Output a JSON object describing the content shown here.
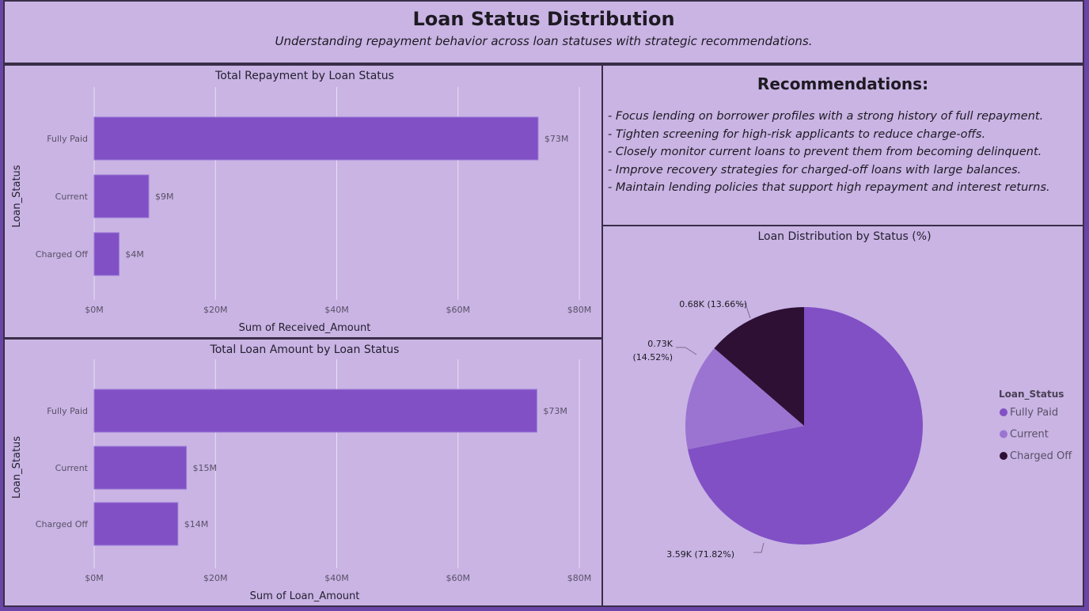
{
  "header": {
    "title": "Loan Status Distribution",
    "subtitle": "Understanding repayment behavior across loan statuses with strategic recommendations."
  },
  "recommendations": {
    "title": "Recommendations:",
    "items": [
      "- Focus lending on borrower profiles with a strong history of full repayment.",
      "- Tighten screening for high-risk applicants to reduce charge-offs.",
      "- Closely monitor current loans to prevent them from becoming delinquent.",
      "- Improve recovery strategies for charged-off loans with large balances.",
      "- Maintain lending policies that support high repayment and interest returns."
    ]
  },
  "colors": {
    "fully_paid": "#8150c5",
    "current": "#9b74d1",
    "charged_off": "#2e1034",
    "bar": "#8150c5"
  },
  "chart_data": [
    {
      "type": "bar",
      "orientation": "horizontal",
      "title": "Total Repayment by Loan Status",
      "xlabel": "Sum of Received_Amount",
      "ylabel": "Loan_Status",
      "categories": [
        "Fully Paid",
        "Current",
        "Charged Off"
      ],
      "values": [
        73.2,
        9.0,
        4.1
      ],
      "unit": "$M",
      "data_labels": [
        "$73M",
        "$9M",
        "$4M"
      ],
      "xlim": [
        0,
        80
      ],
      "xticks": [
        "$0M",
        "$20M",
        "$40M",
        "$60M",
        "$80M"
      ],
      "grid": true
    },
    {
      "type": "bar",
      "orientation": "horizontal",
      "title": "Total Loan Amount by Loan Status",
      "xlabel": "Sum of Loan_Amount",
      "ylabel": "Loan_Status",
      "categories": [
        "Fully Paid",
        "Current",
        "Charged Off"
      ],
      "values": [
        73.0,
        15.2,
        13.8
      ],
      "unit": "$M",
      "data_labels": [
        "$73M",
        "$15M",
        "$14M"
      ],
      "xlim": [
        0,
        80
      ],
      "xticks": [
        "$0M",
        "$20M",
        "$40M",
        "$60M",
        "$80M"
      ],
      "grid": true
    },
    {
      "type": "pie",
      "title": "Loan Distribution by Status (%)",
      "legend_title": "Loan_Status",
      "legend_placement": "right",
      "categories": [
        "Fully Paid",
        "Current",
        "Charged Off"
      ],
      "values": [
        71.82,
        14.52,
        13.66
      ],
      "data_labels": [
        "3.59K (71.82%)",
        "0.73K (14.52%)",
        "0.68K (13.66%)"
      ]
    }
  ]
}
